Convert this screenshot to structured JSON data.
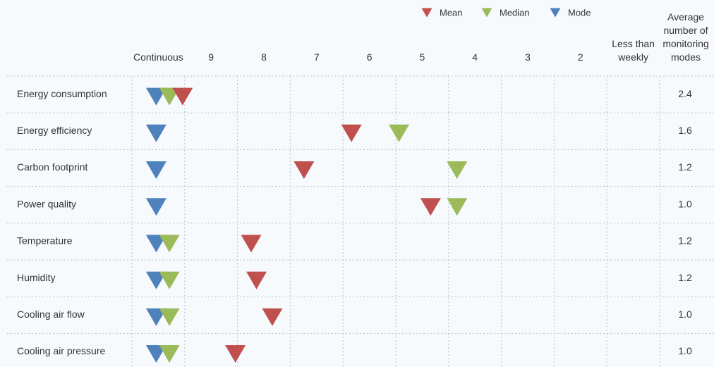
{
  "chart_data": {
    "type": "dot",
    "categories": [
      "Energy consumption",
      "Energy efficiency",
      "Carbon footprint",
      "Power quality",
      "Temperature",
      "Humidity",
      "Cooling air flow",
      "Cooling air pressure"
    ],
    "xlim": [
      10.5,
      0.5
    ],
    "xticks": [
      {
        "value": 10,
        "label": "Continuous"
      },
      9,
      8,
      7,
      6,
      5,
      4,
      3,
      2,
      {
        "value": 1,
        "label": "Less than weekly"
      }
    ],
    "series": [
      {
        "name": "Mode",
        "color": "#4f81bd",
        "values": [
          10,
          10,
          10,
          10,
          10,
          10,
          10,
          10
        ]
      },
      {
        "name": "Median",
        "color": "#9bbb59",
        "values": [
          9.75,
          5.4,
          4.3,
          4.3,
          9.75,
          9.75,
          9.75,
          9.75
        ]
      },
      {
        "name": "Mean",
        "color": "#c0504d",
        "values": [
          9.5,
          6.3,
          7.2,
          4.8,
          8.2,
          8.1,
          7.8,
          8.5
        ]
      }
    ],
    "legend_order": [
      "Mean",
      "Median",
      "Mode"
    ],
    "average": {
      "label": "Average number of monitoring modes",
      "values": [
        2.4,
        1.6,
        1.2,
        1.0,
        1.2,
        1.2,
        1.0,
        1.0
      ],
      "value_labels": [
        "2.4",
        "1.6",
        "1.2",
        "1.0",
        "1.2",
        "1.2",
        "1.0",
        "1.0"
      ]
    },
    "grid": true
  }
}
